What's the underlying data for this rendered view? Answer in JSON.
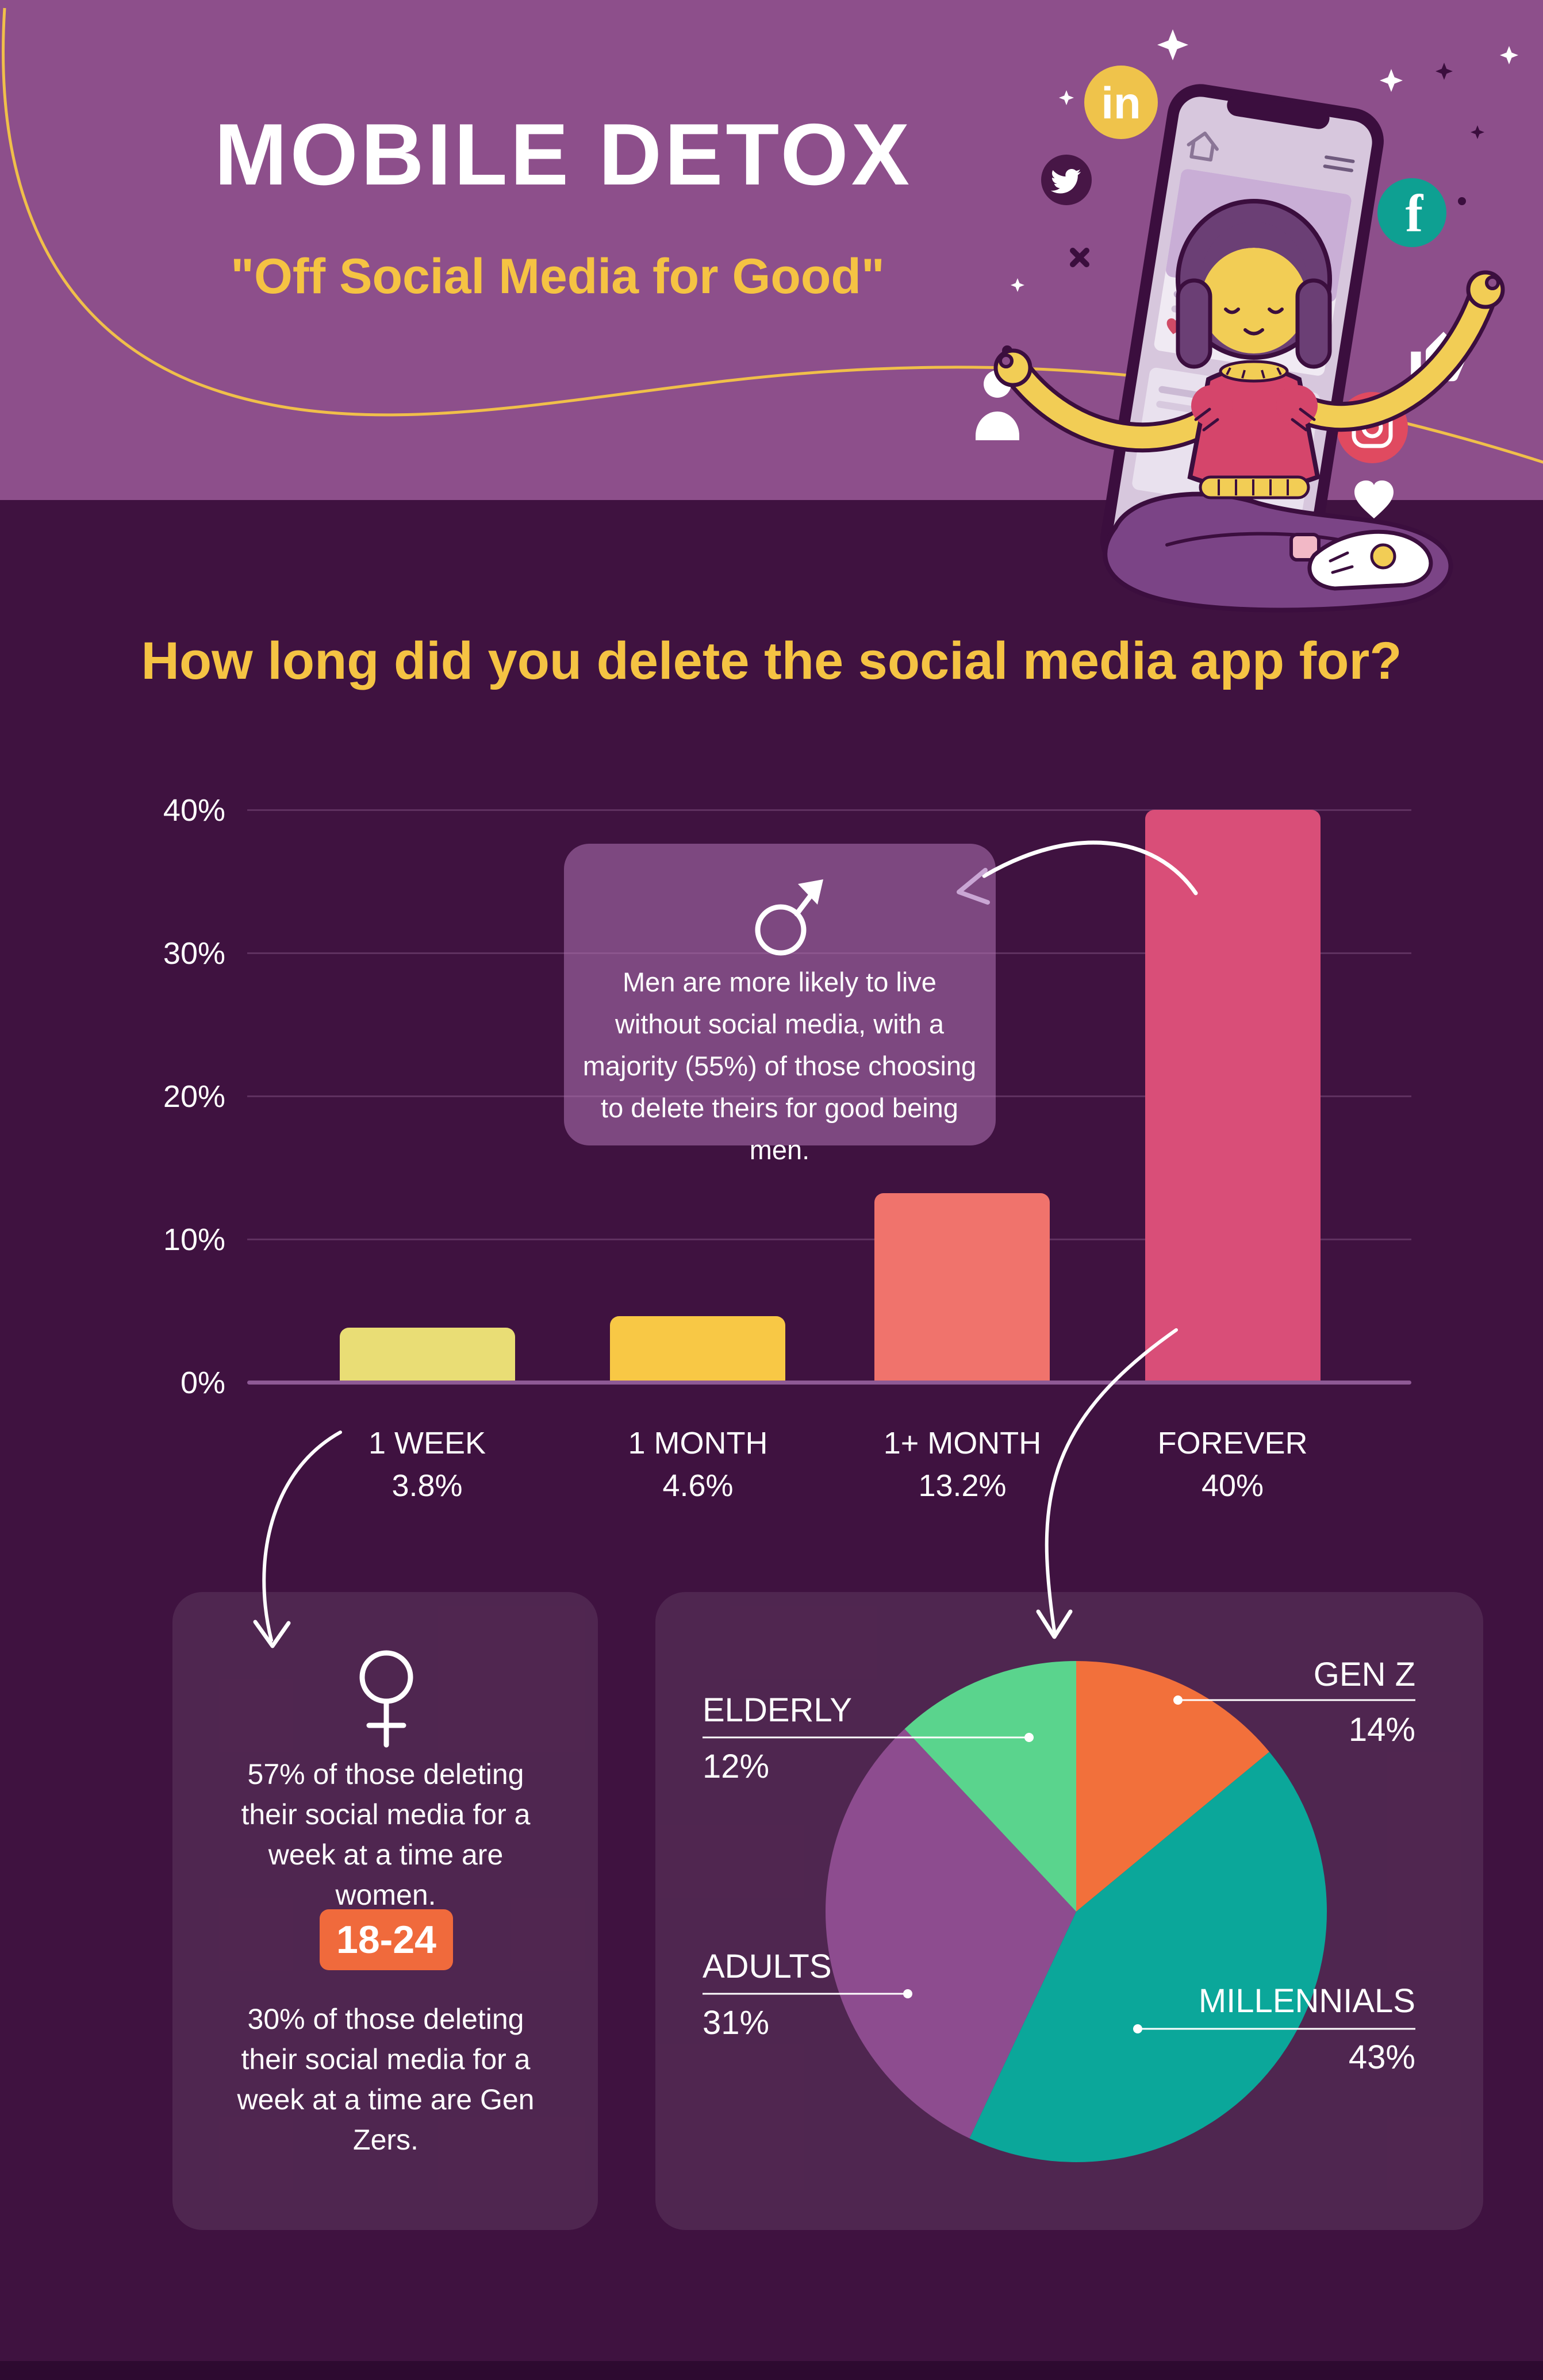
{
  "page": {
    "background": "#3f1240",
    "header_band": "#8d4f8b",
    "accent_yellow": "#f5c343",
    "footer_strip": "#2d0a30"
  },
  "header": {
    "title": "MOBILE DETOX",
    "subtitle": "\"Off Social Media for Good\"",
    "illustration_icons": [
      "linkedin-icon",
      "twitter-icon",
      "facebook-icon",
      "instagram-icon",
      "person-icon",
      "thumbs-up-icon",
      "heart-icon",
      "sparkle-icon",
      "phone",
      "meditating-woman"
    ],
    "icon_colors": {
      "linkedin": "#efc34b",
      "twitter_bg": "#471646",
      "facebook": "#0ea092",
      "instagram": "#e04a60"
    }
  },
  "question": {
    "text": "How long did you delete the social media app for?"
  },
  "male_callout": {
    "icon": "male-symbol",
    "text": "Men are more likely to live without social media, with a majority (55%) of those choosing to delete theirs for good being men."
  },
  "female_card": {
    "icon": "female-symbol",
    "stat_women": "57% of those deleting their social media for a week at a time are women.",
    "age_badge": "18-24",
    "badge_color": "#f06a3c",
    "stat_genz": "30% of those deleting their social media for a week at a time are Gen Zers."
  },
  "chart_data": [
    {
      "type": "bar",
      "title": "How long did you delete the social media app for?",
      "categories": [
        "1 WEEK",
        "1 MONTH",
        "1+ MONTH",
        "FOREVER"
      ],
      "values": [
        3.8,
        4.6,
        13.2,
        40
      ],
      "value_labels": [
        "3.8%",
        "4.6%",
        "13.2%",
        "40%"
      ],
      "bar_colors": [
        "#e9dd75",
        "#f8c845",
        "#f0736c",
        "#d94e78"
      ],
      "y_ticks": [
        "0%",
        "10%",
        "20%",
        "30%",
        "40%"
      ],
      "ylim": [
        0,
        40
      ],
      "grid": true,
      "legend": false
    },
    {
      "type": "pie",
      "labels": [
        "GEN Z",
        "MILLENNIALS",
        "ADULTS",
        "ELDERLY"
      ],
      "values": [
        14,
        43,
        31,
        12
      ],
      "value_labels": [
        "14%",
        "43%",
        "31%",
        "12%"
      ],
      "colors": [
        "#f2703b",
        "#0ba79a",
        "#8d4c8f",
        "#5ad48d"
      ],
      "start_angle": "top",
      "direction": "clockwise",
      "legend": false
    }
  ]
}
